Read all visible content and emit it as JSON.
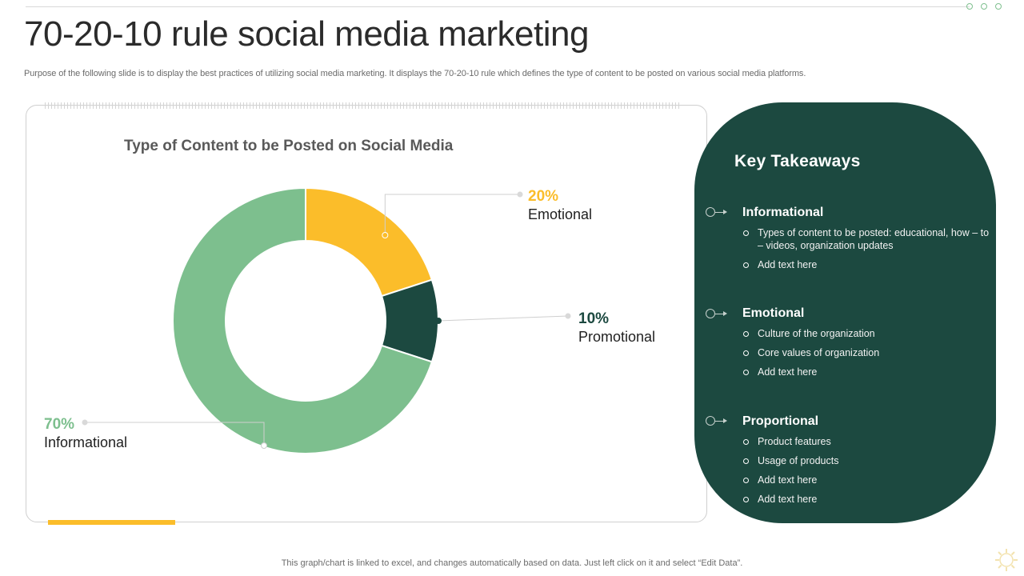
{
  "slide": {
    "title": "70-20-10 rule social media marketing",
    "subtitle": "Purpose of the following slide is to display the best practices of utilizing social media marketing. It displays the 70-20-10 rule which defines the type of content to be posted on various social media platforms.",
    "footer": "This graph/chart is linked to excel, and changes automatically based on data. Just left click on it and select “Edit Data”."
  },
  "chart_data": {
    "type": "pie",
    "title": "Type of Content to be Posted on Social Media",
    "categories": [
      "Emotional",
      "Promotional",
      "Informational"
    ],
    "values": [
      20,
      10,
      70
    ],
    "labels": [
      "20%",
      "10%",
      "70%"
    ],
    "colors": [
      "#fbbd2a",
      "#1c4940",
      "#7dbf8e"
    ]
  },
  "takeaways": {
    "title": "Key Takeaways",
    "sections": [
      {
        "heading": "Informational",
        "items": [
          "Types of content to be posted: educational, how – to – videos, organization updates",
          "Add text here"
        ]
      },
      {
        "heading": "Emotional",
        "items": [
          "Culture of the organization",
          "Core values of organization",
          "Add text here"
        ]
      },
      {
        "heading": "Proportional",
        "items": [
          "Product features",
          "Usage of products",
          "Add text here",
          "Add text here"
        ]
      }
    ]
  },
  "colors": {
    "accent": "#fbbd2a",
    "dark_green": "#1c4940",
    "light_green": "#7dbf8e"
  }
}
